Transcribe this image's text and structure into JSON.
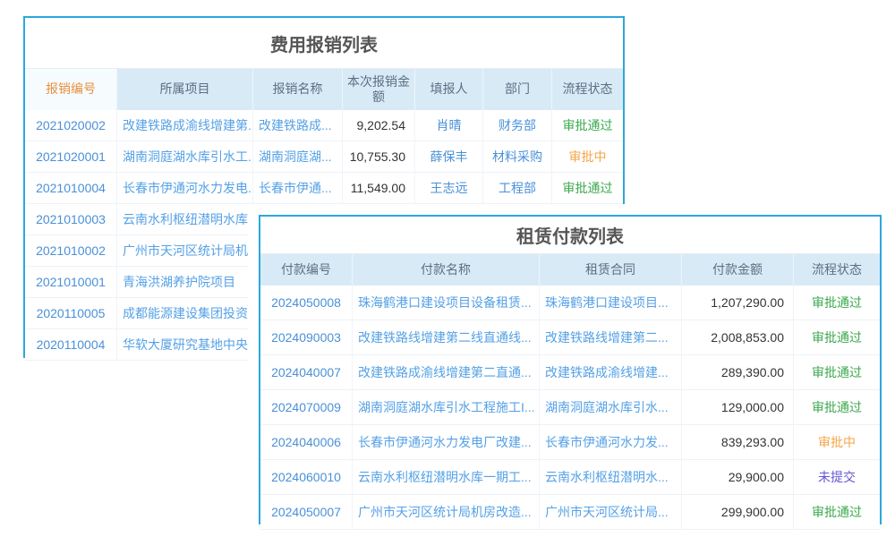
{
  "colors": {
    "panel_border": "#2BA8DC",
    "header_background": "#D9EAF7",
    "header_text": "#5A7082",
    "highlight_header_text": "#E8903F",
    "link_blue": "#4A90D8",
    "project_blue": "#55A1E6",
    "status_approved": "#3BA94E",
    "status_in_review": "#F5A54A",
    "status_not_submitted": "#6356D7",
    "title_text": "#555555"
  },
  "expense_table": {
    "title": "费用报销列表",
    "columns": [
      "报销编号",
      "所属项目",
      "报销名称",
      "本次报销金额",
      "填报人",
      "部门",
      "流程状态"
    ],
    "rows": [
      {
        "id": "2021020002",
        "project": "改建铁路成渝线增建第...",
        "name": "改建铁路成...",
        "amount": "9,202.54",
        "person": "肖晴",
        "dept": "财务部",
        "status": "审批通过",
        "status_type": "approved"
      },
      {
        "id": "2021020001",
        "project": "湖南洞庭湖水库引水工...",
        "name": "湖南洞庭湖...",
        "amount": "10,755.30",
        "person": "薛保丰",
        "dept": "材料采购",
        "status": "审批中",
        "status_type": "in-review"
      },
      {
        "id": "2021010004",
        "project": "长春市伊通河水力发电...",
        "name": "长春市伊通...",
        "amount": "11,549.00",
        "person": "王志远",
        "dept": "工程部",
        "status": "审批通过",
        "status_type": "approved"
      },
      {
        "id": "2021010003",
        "project": "云南水利枢纽潜明水库...",
        "name": "",
        "amount": "",
        "person": "",
        "dept": "",
        "status": "",
        "status_type": ""
      },
      {
        "id": "2021010002",
        "project": "广州市天河区统计局机...",
        "name": "",
        "amount": "",
        "person": "",
        "dept": "",
        "status": "",
        "status_type": ""
      },
      {
        "id": "2021010001",
        "project": "青海洪湖养护院项目",
        "name": "",
        "amount": "",
        "person": "",
        "dept": "",
        "status": "",
        "status_type": ""
      },
      {
        "id": "2020110005",
        "project": "成都能源建设集团投资...",
        "name": "",
        "amount": "",
        "person": "",
        "dept": "",
        "status": "",
        "status_type": ""
      },
      {
        "id": "2020110004",
        "project": "华软大厦研究基地中央...",
        "name": "",
        "amount": "",
        "person": "",
        "dept": "",
        "status": "",
        "status_type": ""
      }
    ]
  },
  "rental_table": {
    "title": "租赁付款列表",
    "columns": [
      "付款编号",
      "付款名称",
      "租赁合同",
      "付款金额",
      "流程状态"
    ],
    "rows": [
      {
        "id": "2024050008",
        "name": "珠海鹤港口建设项目设备租赁...",
        "contract": "珠海鹤港口建设项目...",
        "amount": "1,207,290.00",
        "status": "审批通过",
        "status_type": "approved"
      },
      {
        "id": "2024090003",
        "name": "改建铁路线增建第二线直通线...",
        "contract": "改建铁路线增建第二...",
        "amount": "2,008,853.00",
        "status": "审批通过",
        "status_type": "approved"
      },
      {
        "id": "2024040007",
        "name": "改建铁路成渝线增建第二直通...",
        "contract": "改建铁路成渝线增建...",
        "amount": "289,390.00",
        "status": "审批通过",
        "status_type": "approved"
      },
      {
        "id": "2024070009",
        "name": "湖南洞庭湖水库引水工程施工I...",
        "contract": "湖南洞庭湖水库引水...",
        "amount": "129,000.00",
        "status": "审批通过",
        "status_type": "approved"
      },
      {
        "id": "2024040006",
        "name": "长春市伊通河水力发电厂改建...",
        "contract": "长春市伊通河水力发...",
        "amount": "839,293.00",
        "status": "审批中",
        "status_type": "in-review"
      },
      {
        "id": "2024060010",
        "name": "云南水利枢纽潜明水库一期工...",
        "contract": "云南水利枢纽潜明水...",
        "amount": "29,900.00",
        "status": "未提交",
        "status_type": "not-submitted"
      },
      {
        "id": "2024050007",
        "name": "广州市天河区统计局机房改造...",
        "contract": "广州市天河区统计局...",
        "amount": "299,900.00",
        "status": "审批通过",
        "status_type": "approved"
      }
    ]
  }
}
